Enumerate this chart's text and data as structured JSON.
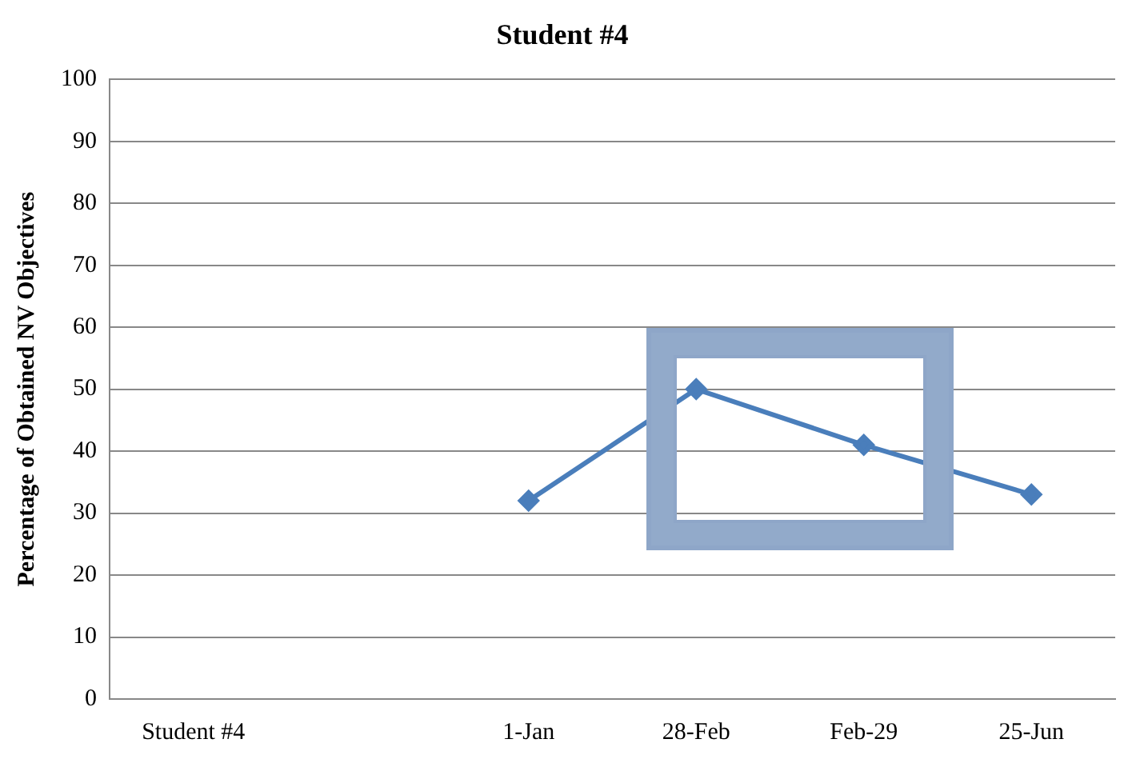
{
  "chart_data": {
    "type": "line",
    "title": "Student #4",
    "ylabel": "Percentage of Obtained NV Objectives",
    "categories": [
      "Student #4",
      null,
      "1-Jan",
      "28-Feb",
      "Feb-29",
      "25-Jun"
    ],
    "series": [
      {
        "color": "#4a7ebb",
        "values": [
          null,
          null,
          32,
          50,
          41,
          33
        ]
      }
    ],
    "ylim": [
      0,
      100
    ],
    "yticks": [
      0,
      10,
      20,
      30,
      40,
      50,
      60,
      70,
      80,
      90,
      100
    ],
    "grid": "y",
    "legend": false,
    "marker": "diamond",
    "line_style": "solid"
  }
}
